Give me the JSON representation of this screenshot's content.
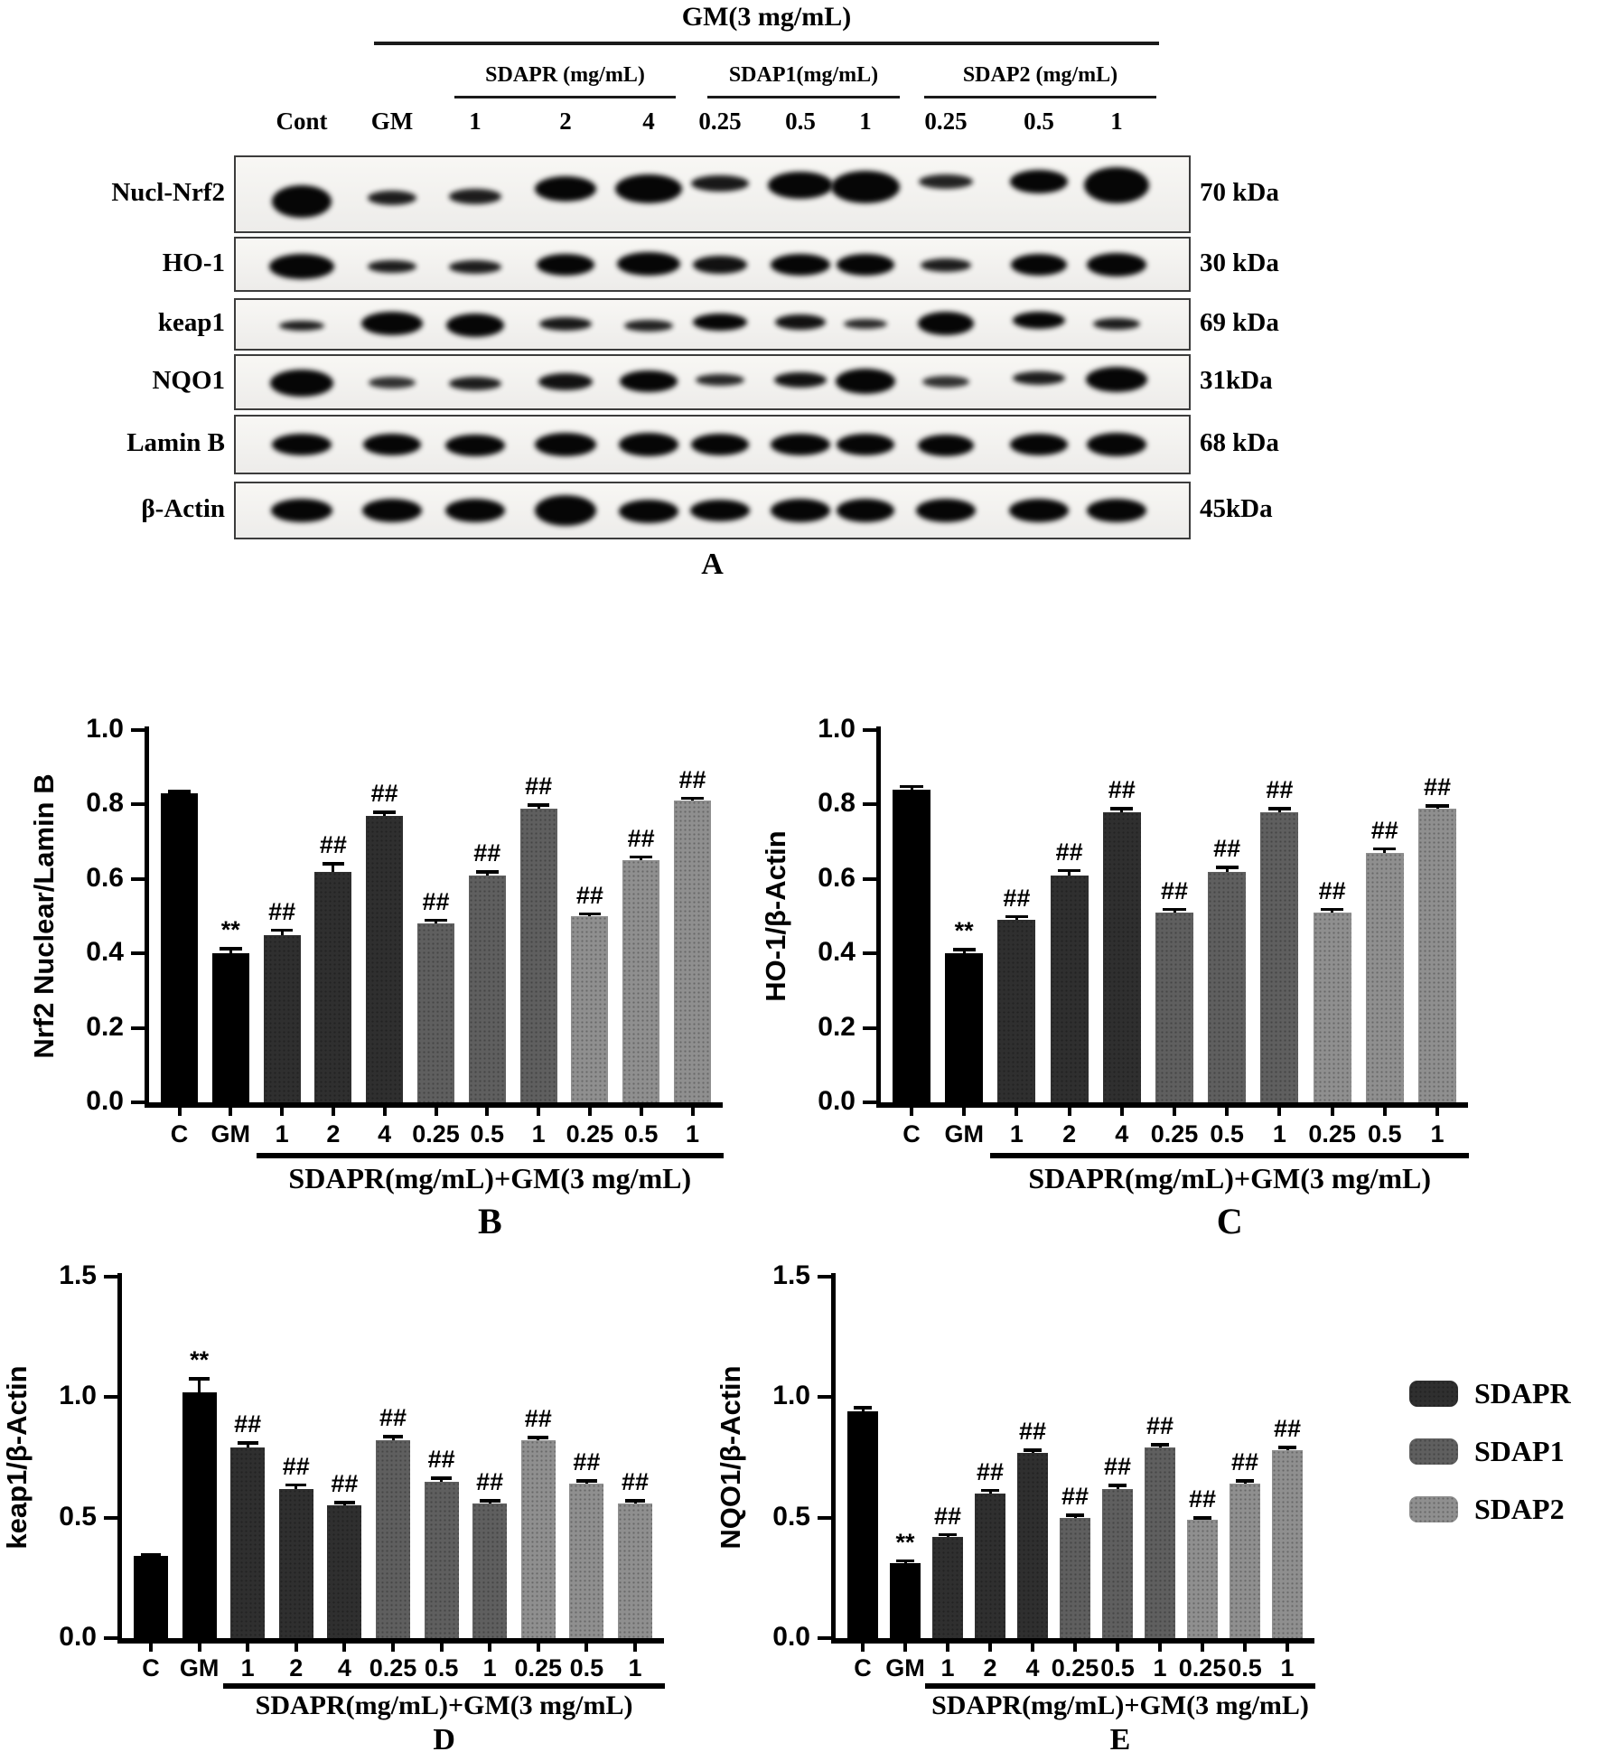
{
  "figure": {
    "background": "#ffffff"
  },
  "panel_a": {
    "letter": "A",
    "header": {
      "label": "GM(3 mg/mL)"
    },
    "group_headers": [
      {
        "label": "SDAPR (mg/mL)"
      },
      {
        "label": "SDAP1(mg/mL)"
      },
      {
        "label": "SDAP2 (mg/mL)"
      }
    ],
    "lane_labels": [
      "Cont",
      "GM",
      "1",
      "2",
      "4",
      "0.25",
      "0.5",
      "1",
      "0.25",
      "0.5",
      "1"
    ],
    "rows": [
      {
        "protein": "Nucl-Nrf2",
        "kda": "70 kDa",
        "bands": [
          [
            66,
            36,
            1,
            8
          ],
          [
            54,
            16,
            0.9,
            4
          ],
          [
            58,
            17,
            0.9,
            2
          ],
          [
            68,
            28,
            1,
            -6
          ],
          [
            74,
            32,
            1,
            -6
          ],
          [
            64,
            18,
            0.92,
            -12
          ],
          [
            72,
            30,
            1,
            -10
          ],
          [
            76,
            36,
            1,
            -8
          ],
          [
            60,
            16,
            0.88,
            -14
          ],
          [
            64,
            26,
            1,
            -14
          ],
          [
            72,
            40,
            1,
            -10
          ]
        ]
      },
      {
        "protein": "HO-1",
        "kda": "30 kDa",
        "bands": [
          [
            72,
            28,
            1,
            2
          ],
          [
            54,
            14,
            0.9,
            2
          ],
          [
            58,
            15,
            0.9,
            3
          ],
          [
            64,
            24,
            1,
            0
          ],
          [
            70,
            26,
            1,
            -1
          ],
          [
            60,
            20,
            0.95,
            0
          ],
          [
            66,
            24,
            1,
            0
          ],
          [
            64,
            24,
            1,
            0
          ],
          [
            56,
            15,
            0.9,
            1
          ],
          [
            62,
            24,
            1,
            0
          ],
          [
            66,
            26,
            1,
            0
          ]
        ]
      },
      {
        "protein": "keap1",
        "kda": "69 kDa",
        "bands": [
          [
            50,
            11,
            0.9,
            1
          ],
          [
            68,
            26,
            1,
            -1
          ],
          [
            64,
            26,
            1,
            1
          ],
          [
            58,
            15,
            0.92,
            -1
          ],
          [
            54,
            13,
            0.88,
            1
          ],
          [
            60,
            19,
            1,
            -3
          ],
          [
            56,
            17,
            0.95,
            -3
          ],
          [
            48,
            11,
            0.85,
            -1
          ],
          [
            62,
            26,
            1,
            -1
          ],
          [
            58,
            19,
            1,
            -5
          ],
          [
            52,
            13,
            0.9,
            -1
          ]
        ]
      },
      {
        "protein": "NQO1",
        "kda": "31kDa",
        "bands": [
          [
            70,
            30,
            1,
            1
          ],
          [
            52,
            13,
            0.82,
            0
          ],
          [
            58,
            15,
            0.9,
            1
          ],
          [
            60,
            19,
            0.95,
            -1
          ],
          [
            64,
            24,
            1,
            -1
          ],
          [
            54,
            13,
            0.86,
            -3
          ],
          [
            58,
            17,
            0.95,
            -3
          ],
          [
            66,
            28,
            1,
            -1
          ],
          [
            52,
            13,
            0.82,
            -1
          ],
          [
            58,
            15,
            0.9,
            -5
          ],
          [
            68,
            28,
            1,
            -3
          ]
        ]
      },
      {
        "protein": "Lamin B",
        "kda": "68 kDa",
        "bands": [
          [
            66,
            24,
            1,
            0
          ],
          [
            64,
            24,
            1,
            0
          ],
          [
            66,
            24,
            1,
            1
          ],
          [
            68,
            26,
            1,
            0
          ],
          [
            66,
            26,
            1,
            0
          ],
          [
            64,
            24,
            1,
            0
          ],
          [
            66,
            24,
            1,
            0
          ],
          [
            64,
            24,
            1,
            0
          ],
          [
            62,
            24,
            1,
            1
          ],
          [
            64,
            24,
            1,
            0
          ],
          [
            66,
            26,
            1,
            0
          ]
        ]
      },
      {
        "protein": "β-Actin",
        "kda": "45kDa",
        "bands": [
          [
            68,
            26,
            1,
            0
          ],
          [
            66,
            26,
            1,
            0
          ],
          [
            66,
            26,
            1,
            0
          ],
          [
            68,
            34,
            1,
            0
          ],
          [
            66,
            26,
            1,
            1
          ],
          [
            66,
            24,
            1,
            0
          ],
          [
            66,
            26,
            1,
            0
          ],
          [
            64,
            26,
            1,
            0
          ],
          [
            66,
            26,
            1,
            0
          ],
          [
            66,
            26,
            1,
            0
          ],
          [
            66,
            26,
            1,
            0
          ]
        ]
      }
    ]
  },
  "series_colors": {
    "control": "#000000",
    "SDAPR": "#2f2f2f",
    "SDAP1": "#5f5f5f",
    "SDAP2": "#8f8f8f"
  },
  "legend": {
    "position": "right-of-panel-E",
    "items": [
      {
        "label": "SDAPR",
        "color": "#2f2f2f"
      },
      {
        "label": "SDAP1",
        "color": "#5f5f5f"
      },
      {
        "label": "SDAP2",
        "color": "#8f8f8f"
      }
    ]
  },
  "chart_data": [
    {
      "id": "B",
      "type": "bar",
      "panel_letter": "B",
      "title": "",
      "ylabel": "Nrf2 Nuclear/Lamin B",
      "xlabel": "SDAPR(mg/mL)+GM(3 mg/mL)",
      "ylim": [
        0,
        1.0
      ],
      "grid": false,
      "legend_position": "none",
      "yticks": [
        "0.0",
        "0.2",
        "0.4",
        "0.6",
        "0.8",
        "1.0"
      ],
      "categories": [
        "C",
        "GM",
        "1",
        "2",
        "4",
        "0.25",
        "0.5",
        "1",
        "0.25",
        "0.5",
        "1"
      ],
      "values": [
        0.83,
        0.4,
        0.45,
        0.62,
        0.77,
        0.48,
        0.61,
        0.79,
        0.5,
        0.65,
        0.81
      ],
      "errors": [
        0.004,
        0.012,
        0.012,
        0.02,
        0.008,
        0.008,
        0.008,
        0.008,
        0.006,
        0.008,
        0.006
      ],
      "annotations": [
        "",
        "**",
        "##",
        "##",
        "##",
        "##",
        "##",
        "##",
        "##",
        "##",
        "##"
      ],
      "bar_series": [
        "control",
        "control",
        "SDAPR",
        "SDAPR",
        "SDAPR",
        "SDAP1",
        "SDAP1",
        "SDAP1",
        "SDAP2",
        "SDAP2",
        "SDAP2"
      ],
      "group_line_range": [
        2,
        10
      ]
    },
    {
      "id": "C",
      "type": "bar",
      "panel_letter": "C",
      "title": "",
      "ylabel": "HO-1/β-Actin",
      "xlabel": "SDAPR(mg/mL)+GM(3 mg/mL)",
      "ylim": [
        0,
        1.0
      ],
      "grid": false,
      "legend_position": "none",
      "yticks": [
        "0.0",
        "0.2",
        "0.4",
        "0.6",
        "0.8",
        "1.0"
      ],
      "categories": [
        "C",
        "GM",
        "1",
        "2",
        "4",
        "0.25",
        "0.5",
        "1",
        "0.25",
        "0.5",
        "1"
      ],
      "values": [
        0.84,
        0.4,
        0.49,
        0.61,
        0.78,
        0.51,
        0.62,
        0.78,
        0.51,
        0.67,
        0.79
      ],
      "errors": [
        0.008,
        0.01,
        0.008,
        0.012,
        0.008,
        0.008,
        0.01,
        0.008,
        0.008,
        0.01,
        0.006
      ],
      "annotations": [
        "",
        "**",
        "##",
        "##",
        "##",
        "##",
        "##",
        "##",
        "##",
        "##",
        "##"
      ],
      "bar_series": [
        "control",
        "control",
        "SDAPR",
        "SDAPR",
        "SDAPR",
        "SDAP1",
        "SDAP1",
        "SDAP1",
        "SDAP2",
        "SDAP2",
        "SDAP2"
      ],
      "group_line_range": [
        2,
        10
      ]
    },
    {
      "id": "D",
      "type": "bar",
      "panel_letter": "D",
      "title": "",
      "ylabel": "keap1/β-Actin",
      "xlabel": "SDAPR(mg/mL)+GM(3 mg/mL)",
      "ylim": [
        0,
        1.5
      ],
      "grid": false,
      "legend_position": "none",
      "yticks": [
        "0.0",
        "0.5",
        "1.0",
        "1.5"
      ],
      "categories": [
        "C",
        "GM",
        "1",
        "2",
        "4",
        "0.25",
        "0.5",
        "1",
        "0.25",
        "0.5",
        "1"
      ],
      "values": [
        0.34,
        1.02,
        0.79,
        0.62,
        0.55,
        0.82,
        0.65,
        0.56,
        0.82,
        0.64,
        0.56
      ],
      "errors": [
        0.006,
        0.055,
        0.02,
        0.015,
        0.012,
        0.015,
        0.012,
        0.01,
        0.012,
        0.012,
        0.01
      ],
      "annotations": [
        "",
        "**",
        "##",
        "##",
        "##",
        "##",
        "##",
        "##",
        "##",
        "##",
        "##"
      ],
      "bar_series": [
        "control",
        "control",
        "SDAPR",
        "SDAPR",
        "SDAPR",
        "SDAP1",
        "SDAP1",
        "SDAP1",
        "SDAP2",
        "SDAP2",
        "SDAP2"
      ],
      "group_line_range": [
        2,
        10
      ]
    },
    {
      "id": "E",
      "type": "bar",
      "panel_letter": "E",
      "title": "",
      "ylabel": "NQO1/β-Actin",
      "xlabel": "SDAPR(mg/mL)+GM(3 mg/mL)",
      "ylim": [
        0,
        1.5
      ],
      "grid": false,
      "legend_position": "right",
      "yticks": [
        "0.0",
        "0.5",
        "1.0",
        "1.5"
      ],
      "categories": [
        "C",
        "GM",
        "1",
        "2",
        "4",
        "0.25",
        "0.5",
        "1",
        "0.25",
        "0.5",
        "1"
      ],
      "values": [
        0.94,
        0.31,
        0.42,
        0.6,
        0.77,
        0.5,
        0.62,
        0.79,
        0.49,
        0.64,
        0.78
      ],
      "errors": [
        0.015,
        0.01,
        0.008,
        0.012,
        0.01,
        0.01,
        0.012,
        0.012,
        0.008,
        0.012,
        0.01
      ],
      "annotations": [
        "",
        "**",
        "##",
        "##",
        "##",
        "##",
        "##",
        "##",
        "##",
        "##",
        "##"
      ],
      "bar_series": [
        "control",
        "control",
        "SDAPR",
        "SDAPR",
        "SDAPR",
        "SDAP1",
        "SDAP1",
        "SDAP1",
        "SDAP2",
        "SDAP2",
        "SDAP2"
      ],
      "group_line_range": [
        2,
        10
      ]
    }
  ]
}
